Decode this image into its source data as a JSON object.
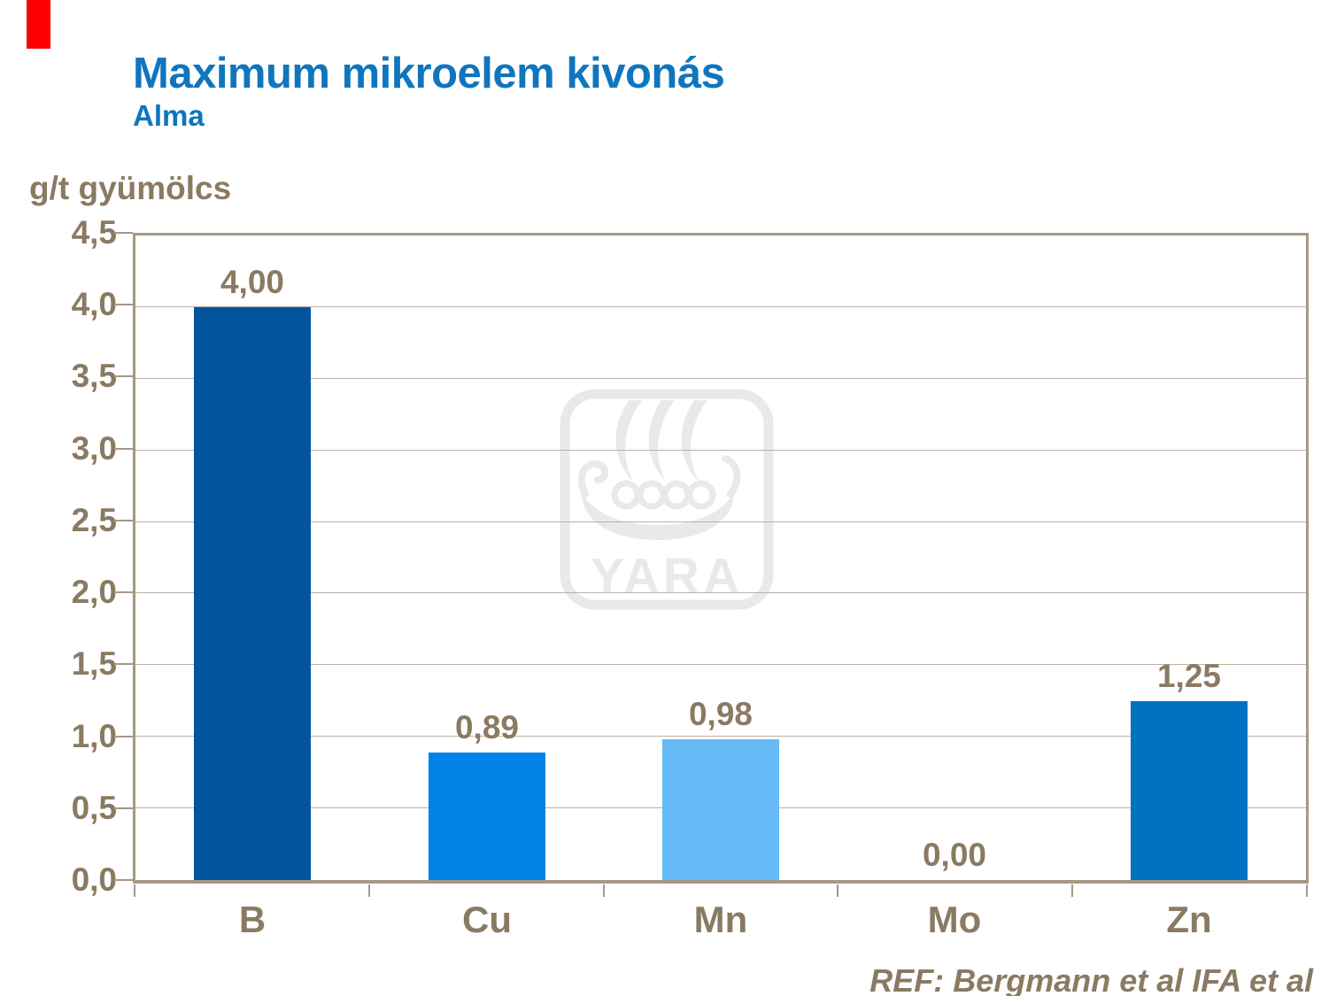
{
  "slide": {
    "title": "Maximum mikroelem kivonás",
    "subtitle": "Alma",
    "reference": "REF: Bergmann et al IFA et al"
  },
  "watermark": {
    "text": "YARA",
    "color": "#E9E9E9"
  },
  "colors": {
    "title_blue": "#0F76BE",
    "text_brown": "#8B7A63",
    "axis_tan": "#A69885",
    "gridline_tan": "#BFB1A0",
    "accent_red": "#FE0000"
  },
  "chart_data": {
    "type": "bar",
    "title": "Maximum mikroelem kivonás",
    "subtitle": "Alma",
    "xlabel": "",
    "ylabel": "g/t gyümölcs",
    "categories": [
      "B",
      "Cu",
      "Mn",
      "Mo",
      "Zn"
    ],
    "values": [
      4.0,
      0.89,
      0.98,
      0.0,
      1.25
    ],
    "value_labels": [
      "4,00",
      "0,89",
      "0,98",
      "0,00",
      "1,25"
    ],
    "bar_colors": [
      "#02549E",
      "#0082E6",
      "#66BBF7",
      "#0082E6",
      "#0072C2"
    ],
    "ylim": [
      0,
      4.5
    ],
    "ytick_step": 0.5,
    "ytick_labels": [
      "0,0",
      "0,5",
      "1,0",
      "1,5",
      "2,0",
      "2,5",
      "3,0",
      "3,5",
      "4,0",
      "4,5"
    ],
    "grid": true,
    "legend": false,
    "annotation": "REF: Bergmann et al IFA et al"
  }
}
